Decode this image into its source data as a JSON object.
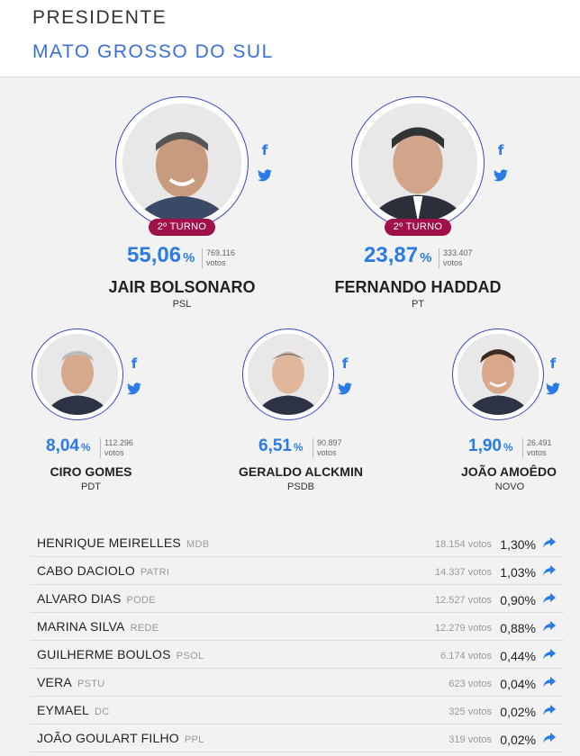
{
  "header": {
    "title": "PRESIDENTE",
    "subtitle": "MATO GROSSO DO SUL"
  },
  "icons": {
    "facebook": "f",
    "twitter": "twitter-bird"
  },
  "colors": {
    "accent": "#2a7be4",
    "badge": "#a0114a",
    "ring": "#3848c8"
  },
  "top": [
    {
      "name": "JAIR BOLSONARO",
      "party": "PSL",
      "pct": "55,06",
      "pct_sym": "%",
      "votes": "769.116",
      "votes_label": "votos",
      "badge": "2º TURNO"
    },
    {
      "name": "FERNANDO HADDAD",
      "party": "PT",
      "pct": "23,87",
      "pct_sym": "%",
      "votes": "333.407",
      "votes_label": "votos",
      "badge": "2º TURNO"
    }
  ],
  "mid": [
    {
      "name": "CIRO GOMES",
      "party": "PDT",
      "pct": "8,04",
      "pct_sym": "%",
      "votes": "112.296",
      "votes_label": "votos"
    },
    {
      "name": "GERALDO ALCKMIN",
      "party": "PSDB",
      "pct": "6,51",
      "pct_sym": "%",
      "votes": "90.897",
      "votes_label": "votos"
    },
    {
      "name": "JOÃO AMOÊDO",
      "party": "NOVO",
      "pct": "1,90",
      "pct_sym": "%",
      "votes": "26.491",
      "votes_label": "votos"
    }
  ],
  "others": [
    {
      "name": "HENRIQUE MEIRELLES",
      "party": "MDB",
      "votes": "18.154 votos",
      "pct": "1,30%"
    },
    {
      "name": "CABO DACIOLO",
      "party": "PATRI",
      "votes": "14.337 votos",
      "pct": "1,03%"
    },
    {
      "name": "ALVARO DIAS",
      "party": "PODE",
      "votes": "12.527 votos",
      "pct": "0,90%"
    },
    {
      "name": "MARINA SILVA",
      "party": "REDE",
      "votes": "12.279 votos",
      "pct": "0,88%"
    },
    {
      "name": "GUILHERME BOULOS",
      "party": "PSOL",
      "votes": "6.174 votos",
      "pct": "0,44%"
    },
    {
      "name": "VERA",
      "party": "PSTU",
      "votes": "623 votos",
      "pct": "0,04%"
    },
    {
      "name": "EYMAEL",
      "party": "DC",
      "votes": "325 votos",
      "pct": "0,02%"
    },
    {
      "name": "JOÃO GOULART FILHO",
      "party": "PPL",
      "votes": "319 votos",
      "pct": "0,02%"
    }
  ]
}
